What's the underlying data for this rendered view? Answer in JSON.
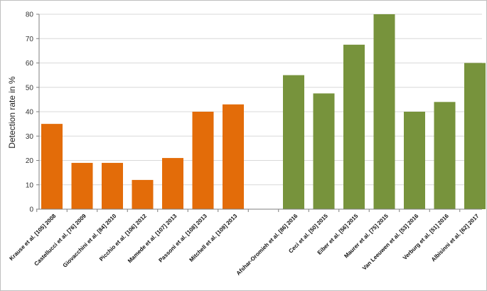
{
  "chart_data": {
    "type": "bar",
    "title": "",
    "xlabel": "",
    "ylabel": "Detection rate in %",
    "ylim": [
      0,
      80
    ],
    "yticks": [
      0,
      10,
      20,
      30,
      40,
      50,
      60,
      70,
      80
    ],
    "grid": true,
    "legend": "none",
    "groups": [
      {
        "color": "#e36c09",
        "categories": [
          "Krause et al. [105] 2008",
          "Castellucci et al. [76] 2009",
          "Giovacchini et al. [84] 2010",
          "Picchio et al. [106] 2012",
          "Mamede et al. [107] 2013",
          "Passoni et al. [108] 2013",
          "Mitchell et al. [109] 2013"
        ],
        "values": [
          35,
          19,
          19,
          12,
          21,
          40,
          43
        ]
      },
      {
        "color": "#77933c",
        "categories": [
          "Afshar-Oromieh et al. [86] 2016",
          "Ceci et al. [50] 2015",
          "Eiber et al. [56] 2015",
          "Maurer et al. [75] 2015",
          "Van Leeuwen et al. [53] 2016",
          "Verburg et al. [51] 2016",
          "Albisinni et al. [62] 2017"
        ],
        "values": [
          55,
          47.5,
          67.5,
          80,
          40,
          44,
          60
        ]
      }
    ]
  }
}
